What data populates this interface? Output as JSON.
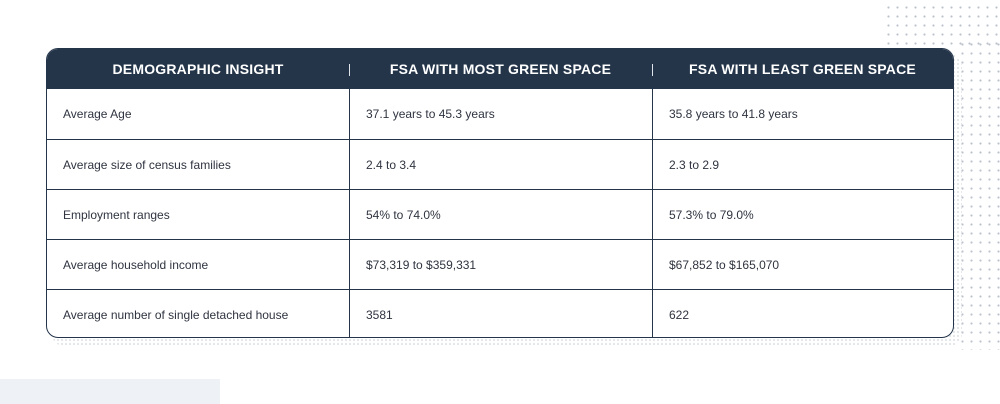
{
  "table": {
    "headers": [
      "DEMOGRAPHIC INSIGHT",
      "FSA WITH MOST GREEN SPACE",
      "FSA WITH LEAST GREEN SPACE"
    ],
    "rows": [
      [
        "Average Age",
        "37.1 years to 45.3 years",
        "35.8 years to 41.8 years"
      ],
      [
        "Average size of census families",
        "2.4 to 3.4",
        "2.3 to 2.9"
      ],
      [
        "Employment ranges",
        "54% to 74.0%",
        "57.3% to 79.0%"
      ],
      [
        "Average household income",
        "$73,319 to $359,331",
        "$67,852 to $165,070"
      ],
      [
        "Average number of single detached house",
        "3581",
        "622"
      ]
    ]
  },
  "colors": {
    "header_background": "#24354a",
    "header_text": "#ffffff",
    "body_text": "#2f3440",
    "grid_lines": "#24354a",
    "background": "#ffffff"
  }
}
